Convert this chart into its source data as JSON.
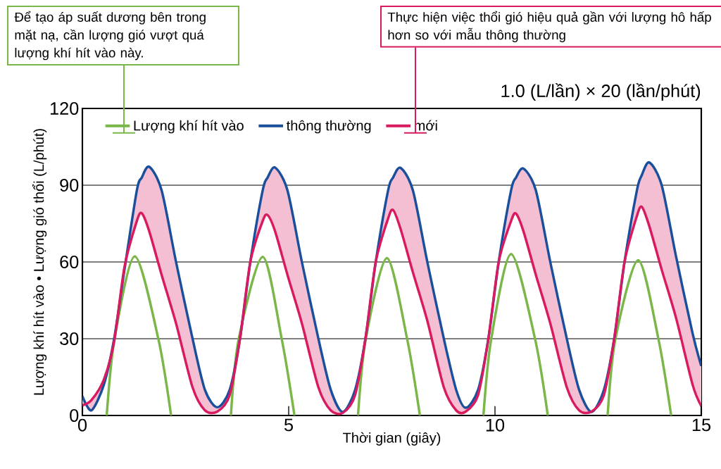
{
  "chart_data": {
    "type": "line",
    "subtitle": "1.0 (L/lần) × 20 (lần/phút)",
    "xlabel": "Thời gian (giây)",
    "ylabel": "Lượng khí hít vào • Lượng gió thổi (L/phút)",
    "annotations": [
      "Để tạo áp suất dương bên trong mặt nạ, cần lượng gió vượt quá lượng khí hít vào này.",
      "Thực hiện việc thổi gió hiệu quả gần với lượng hô hấp hơn so với mẫu thông thường"
    ],
    "xlim": [
      0,
      15
    ],
    "xticks": [
      0,
      5,
      10,
      15
    ],
    "ylim": [
      0,
      120
    ],
    "yticks": [
      0,
      30,
      60,
      90,
      120
    ],
    "grid": "y",
    "legend": "top",
    "series": [
      {
        "name": "Lượng khí hít vào",
        "color": "#7ab648",
        "x": [
          0.59,
          0.78,
          1.27,
          1.84,
          2.15,
          2.9,
          3.6,
          3.79,
          4.37,
          4.83,
          5.14,
          5.9,
          6.68,
          6.87,
          7.38,
          7.87,
          8.18,
          9.0,
          9.72,
          9.91,
          10.39,
          10.97,
          11.28,
          12.0,
          12.73,
          12.92,
          13.47,
          13.96,
          14.27
        ],
        "values": [
          0,
          30,
          62.2,
          30,
          0,
          null,
          0,
          30,
          62,
          30,
          0,
          null,
          0,
          30,
          61.5,
          30,
          0,
          null,
          0,
          30,
          63.1,
          30,
          0,
          null,
          0,
          30,
          60.7,
          30,
          0
        ]
      },
      {
        "name": "thông thường",
        "color": "#1a4f9c",
        "x": [
          0,
          0.22,
          0.52,
          0.77,
          1.02,
          1.32,
          1.44,
          1.62,
          1.92,
          2.27,
          2.67,
          2.97,
          3.27,
          3.57,
          3.82,
          4.07,
          4.37,
          4.49,
          4.67,
          4.97,
          5.32,
          5.72,
          6.02,
          6.31,
          6.61,
          6.86,
          7.11,
          7.41,
          7.53,
          7.71,
          8.01,
          8.36,
          8.76,
          9.06,
          9.29,
          9.59,
          9.84,
          10.09,
          10.39,
          10.51,
          10.69,
          10.99,
          11.34,
          11.74,
          12.04,
          12.34,
          12.64,
          12.89,
          13.14,
          13.44,
          13.56,
          13.74,
          14.04,
          14.39,
          14.79,
          15
        ],
        "values": [
          7.5,
          2,
          12,
          30,
          57,
          88,
          93,
          97.2,
          88,
          60,
          30,
          10,
          3.2,
          10,
          30,
          60,
          88,
          93,
          96.9,
          88,
          60,
          30,
          10,
          1.4,
          10,
          30,
          60,
          88,
          93,
          96.8,
          88,
          60,
          30,
          10,
          3,
          10,
          30,
          60,
          88,
          93,
          96.5,
          88,
          60,
          30,
          10,
          1.4,
          10,
          30,
          60,
          88,
          94,
          98.9,
          90,
          62,
          32,
          19.3
        ]
      },
      {
        "name": "mới",
        "color": "#d81b60",
        "x": [
          0,
          0.22,
          0.52,
          0.77,
          1.02,
          1.32,
          1.44,
          1.62,
          1.92,
          2.27,
          2.67,
          2.97,
          3.27,
          3.57,
          3.82,
          4.07,
          4.37,
          4.49,
          4.67,
          4.97,
          5.32,
          5.72,
          6.02,
          6.31,
          6.61,
          6.86,
          7.11,
          7.41,
          7.53,
          7.71,
          8.01,
          8.36,
          8.76,
          9.06,
          9.29,
          9.59,
          9.84,
          10.09,
          10.39,
          10.51,
          10.69,
          10.99,
          11.34,
          11.74,
          12.04,
          12.34,
          12.64,
          12.89,
          13.14,
          13.44,
          13.56,
          13.74,
          14.04,
          14.39,
          14.79,
          15
        ],
        "values": [
          4,
          6,
          14,
          29,
          58,
          76,
          79,
          72,
          55,
          36,
          11,
          2,
          1.5,
          8,
          30,
          60,
          76,
          78.3,
          72,
          55,
          36,
          11,
          2,
          1,
          8,
          30,
          60,
          77,
          80.3,
          73,
          56,
          37,
          11,
          2,
          1.5,
          8,
          30,
          60,
          76,
          78.9,
          72,
          55,
          36,
          11,
          2,
          1.5,
          8,
          30,
          60,
          78,
          81.5,
          74,
          57,
          38,
          12,
          3.7
        ],
        "lower": [
          4,
          6,
          14,
          29,
          58,
          76,
          79,
          72,
          55,
          36,
          11,
          2,
          1.5,
          8,
          30,
          60,
          76,
          78.3,
          72,
          55,
          36,
          11,
          2,
          1,
          8,
          30,
          60,
          77,
          80.3,
          73,
          56,
          37,
          11,
          2,
          1.5,
          8,
          30,
          60,
          76,
          78.9,
          72,
          55,
          36,
          11,
          2,
          1.5,
          8,
          30,
          60,
          78,
          81.5,
          74,
          57,
          38,
          12,
          3.7
        ],
        "upper": [
          7.5,
          2,
          12,
          30,
          57,
          88,
          93,
          97.2,
          88,
          60,
          30,
          10,
          3.2,
          10,
          30,
          60,
          88,
          93,
          96.9,
          88,
          60,
          30,
          10,
          1.4,
          10,
          30,
          60,
          88,
          93,
          96.8,
          88,
          60,
          30,
          10,
          3,
          10,
          30,
          60,
          88,
          93,
          96.5,
          88,
          60,
          30,
          10,
          1.4,
          10,
          30,
          60,
          88,
          94,
          98.9,
          90,
          62,
          32,
          19.3
        ]
      }
    ]
  }
}
